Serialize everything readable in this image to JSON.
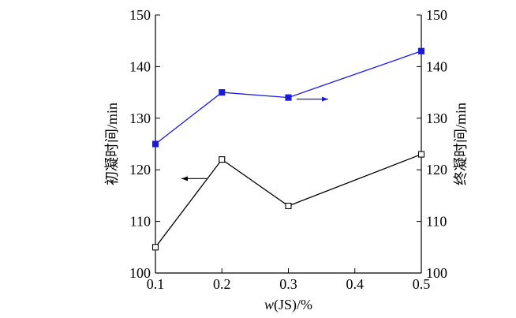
{
  "chart_data": {
    "type": "line",
    "xlabel": "w(JS)/%",
    "ylabel_left": "初凝时间/min",
    "ylabel_right": "终凝时间/min",
    "xlim": [
      0.1,
      0.5
    ],
    "ylim_left": [
      100,
      150
    ],
    "ylim_right": [
      100,
      150
    ],
    "x_ticks": [
      "0.1",
      "0.2",
      "0.3",
      "0.4",
      "0.5"
    ],
    "y_ticks_left": [
      "100",
      "110",
      "120",
      "130",
      "140",
      "150"
    ],
    "y_ticks_right": [
      "100",
      "110",
      "120",
      "130",
      "140",
      "150"
    ],
    "grid": false,
    "series": [
      {
        "axis": "right",
        "marker": "filled-square",
        "color": "#1a1adf",
        "x": [
          0.1,
          0.2,
          0.3,
          0.5
        ],
        "values": [
          125,
          135,
          134,
          143
        ]
      },
      {
        "axis": "left",
        "marker": "open-square",
        "color": "#000000",
        "x": [
          0.1,
          0.2,
          0.3,
          0.5
        ],
        "values": [
          105,
          122,
          113,
          123
        ]
      }
    ]
  }
}
